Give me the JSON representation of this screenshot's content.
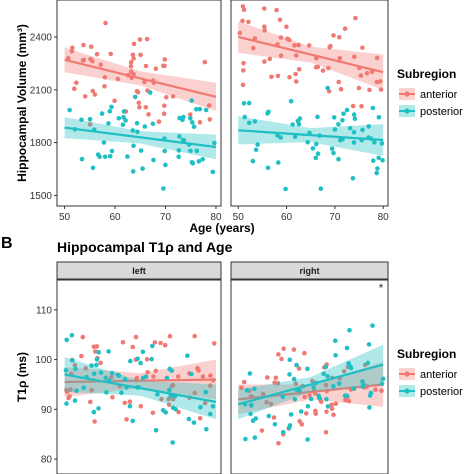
{
  "colors": {
    "anterior": "#f07a73",
    "posterior": "#1fbfc4"
  },
  "chart_data": [
    {
      "type": "scatter",
      "title": "",
      "xlabel": "Age (years)",
      "ylabel": "Hippocampal Volume (mm³)",
      "xlim": [
        48.5,
        81
      ],
      "ylim": [
        1440,
        2610
      ],
      "x_ticks": [
        "50",
        "60",
        "70",
        "80"
      ],
      "y_ticks": [
        "1500",
        "1800",
        "2100",
        "2400"
      ],
      "facets": [
        "",
        ""
      ],
      "legend": {
        "title": "Subregion",
        "position": "right",
        "entries": [
          "anterior",
          "posterior"
        ]
      },
      "panels": [
        {
          "series": [
            {
              "name": "anterior",
              "fit": {
                "x": [
                  50,
                  80
                ],
                "y": [
                  2270,
                  2060
                ],
                "ci_halfwidth": [
                  70,
                  40,
                  80
                ]
              }
            },
            {
              "name": "posterior",
              "fit": {
                "x": [
                  50,
                  80
                ],
                "y": [
                  1885,
                  1775
                ],
                "ci_halfwidth": [
                  60,
                  35,
                  70
                ]
              }
            }
          ]
        },
        {
          "series": [
            {
              "name": "anterior",
              "fit": {
                "x": [
                  50,
                  80
                ],
                "y": [
                  2400,
                  2200
                ],
                "ci_halfwidth": [
                  90,
                  45,
                  100
                ]
              }
            },
            {
              "name": "posterior",
              "fit": {
                "x": [
                  50,
                  80
                ],
                "y": [
                  1870,
                  1815
                ],
                "ci_halfwidth": [
                  80,
                  40,
                  90
                ]
              }
            }
          ]
        }
      ]
    },
    {
      "type": "scatter",
      "panel_label": "B",
      "title": "Hippocampal T1ρ and Age",
      "xlabel": "",
      "ylabel": "T1ρ (ms)",
      "xlim": [
        48.5,
        81
      ],
      "ylim": [
        77,
        116
      ],
      "y_ticks": [
        "80",
        "90",
        "100",
        "110"
      ],
      "facets": [
        "left",
        "right"
      ],
      "annotations": [
        "*"
      ],
      "legend": {
        "title": "Subregion",
        "position": "right",
        "entries": [
          "anterior",
          "posterior"
        ]
      },
      "panels": [
        {
          "series": [
            {
              "name": "anterior",
              "fit": {
                "x": [
                  50,
                  80
                ],
                "y": [
                  95.5,
                  96.0
                ],
                "ci_halfwidth": [
                  3.0,
                  1.5,
                  4.0
                ]
              }
            },
            {
              "name": "posterior",
              "fit": {
                "x": [
                  50,
                  80
                ],
                "y": [
                  97.0,
                  91.5
                ],
                "ci_halfwidth": [
                  3.5,
                  1.5,
                  3.5
                ]
              }
            }
          ]
        },
        {
          "series": [
            {
              "name": "anterior",
              "fit": {
                "x": [
                  50,
                  80
                ],
                "y": [
                  92.0,
                  95.0
                ],
                "ci_halfwidth": [
                  3.0,
                  1.5,
                  4.5
                ]
              }
            },
            {
              "name": "posterior",
              "fit": {
                "x": [
                  50,
                  80
                ],
                "y": [
                  91.0,
                  99.0
                ],
                "ci_halfwidth": [
                  3.0,
                  1.5,
                  4.0
                ]
              }
            }
          ]
        }
      ]
    }
  ]
}
